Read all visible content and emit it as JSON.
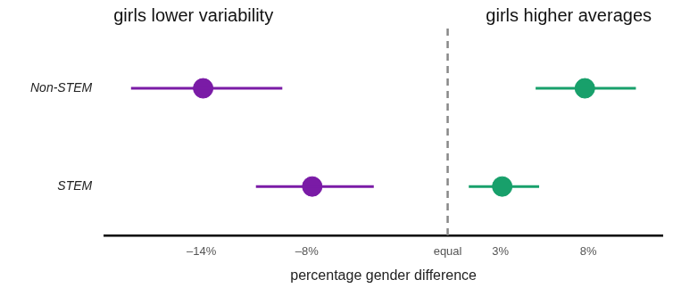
{
  "chart_data": {
    "type": "dot_whisker",
    "orientation": "horizontal",
    "annotations": [
      "girls lower variability",
      "girls higher averages"
    ],
    "x_label": "percentage gender difference",
    "categories": [
      "Non-STEM",
      "STEM"
    ],
    "series": [
      {
        "color": "#7a1ba6",
        "values": [
          -13.9,
          -7.7
        ],
        "ci": [
          [
            -18.0,
            -9.4
          ],
          [
            -10.9,
            -4.2
          ]
        ]
      },
      {
        "color": "#18a06b",
        "values": [
          7.8,
          3.1
        ],
        "ci": [
          [
            5.0,
            10.7
          ],
          [
            1.2,
            5.2
          ]
        ]
      }
    ],
    "reference_x": 0,
    "xlim": [
      -19.5,
      12.2
    ],
    "xticks": [
      {
        "value": -14,
        "label": "–14%"
      },
      {
        "value": -8,
        "label": "–8%"
      },
      {
        "value": 0,
        "label": "equal"
      },
      {
        "value": 3,
        "label": "3%"
      },
      {
        "value": 8,
        "label": "8%"
      }
    ],
    "grid": false,
    "legend": false,
    "data_labels": false
  }
}
